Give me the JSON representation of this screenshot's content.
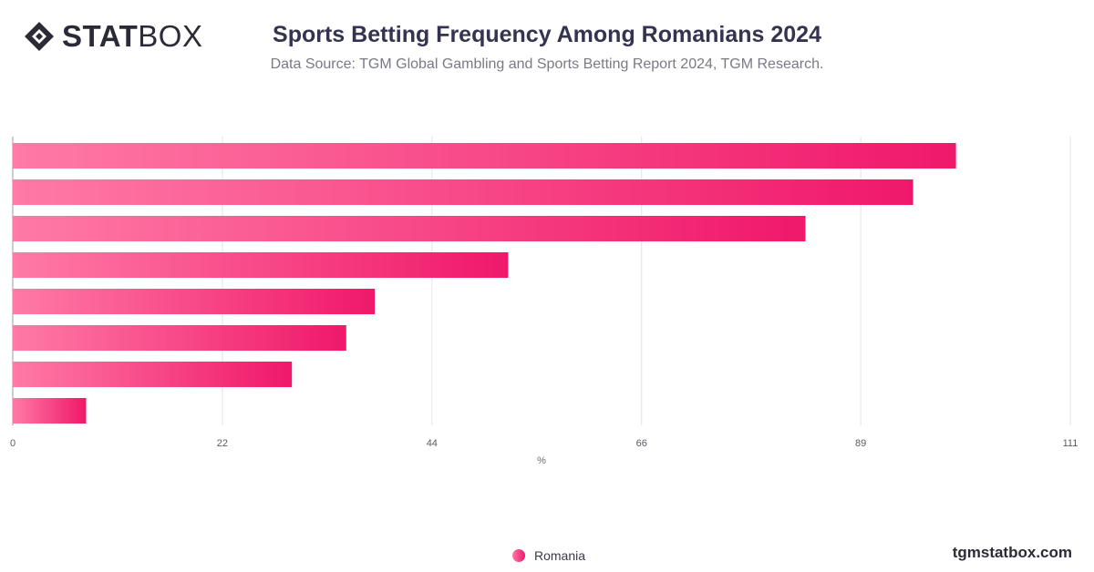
{
  "brand": {
    "logo_bold": "STAT",
    "logo_light": "BOX",
    "url": "tgmstatbox.com"
  },
  "header": {
    "title": "Sports Betting Frequency Among Romanians 2024",
    "subtitle": "Data Source: TGM Global Gambling and Sports Betting Report 2024, TGM Research."
  },
  "colors": {
    "bar_start": "#ff7aa6",
    "bar_end": "#f0186a",
    "grid": "#e3e3e8",
    "axis": "#9a9aa5"
  },
  "chart_data": {
    "type": "bar",
    "orientation": "horizontal",
    "categories": [
      "",
      "",
      "",
      "",
      "",
      "",
      "",
      ""
    ],
    "series": [
      {
        "name": "Romania",
        "values": [
          99,
          94.5,
          83.2,
          52,
          38,
          35,
          29.3,
          7.7
        ]
      }
    ],
    "xlabel": "%",
    "xlim": [
      0,
      111
    ],
    "xticks": [
      0,
      22,
      44,
      66,
      89,
      111
    ],
    "grid": true,
    "legend": "bottom-center"
  }
}
